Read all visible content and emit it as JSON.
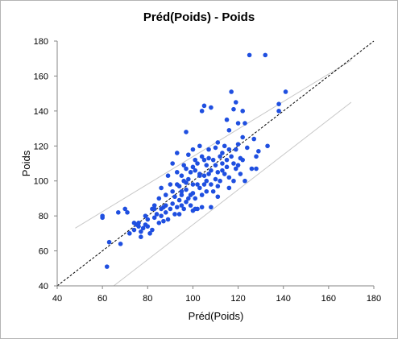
{
  "chart_data": {
    "type": "scatter",
    "title": "Préd(Poids) - Poids",
    "xlabel": "Préd(Poids)",
    "ylabel": "Poids",
    "xlim": [
      40,
      180
    ],
    "ylim": [
      40,
      180
    ],
    "xticks": [
      "40",
      "60",
      "80",
      "100",
      "120",
      "140",
      "160",
      "180"
    ],
    "yticks": [
      "40",
      "60",
      "80",
      "100",
      "120",
      "140",
      "160",
      "180"
    ],
    "grid": false,
    "legend": "none",
    "colors": {
      "points": "#1f4fe0",
      "identity_line": "#000000",
      "band_lines": "#c8c8c8",
      "axes": "#868686"
    },
    "identity_line": {
      "from": [
        40,
        40
      ],
      "to": [
        180,
        180
      ]
    },
    "band_lines": [
      {
        "from": [
          48,
          73
        ],
        "to": [
          170,
          169
        ]
      },
      {
        "from": [
          65,
          40
        ],
        "to": [
          170,
          145
        ]
      }
    ],
    "points": [
      [
        60,
        79
      ],
      [
        62,
        51
      ],
      [
        63,
        65
      ],
      [
        67,
        82
      ],
      [
        68,
        64
      ],
      [
        70,
        84
      ],
      [
        71,
        82
      ],
      [
        72,
        70
      ],
      [
        74,
        72
      ],
      [
        75,
        75
      ],
      [
        76,
        76
      ],
      [
        76,
        74
      ],
      [
        77,
        71
      ],
      [
        78,
        73
      ],
      [
        77,
        68
      ],
      [
        79,
        75
      ],
      [
        80,
        78
      ],
      [
        80,
        74
      ],
      [
        81,
        70
      ],
      [
        82,
        72
      ],
      [
        82,
        84
      ],
      [
        83,
        79
      ],
      [
        83,
        84
      ],
      [
        84,
        81
      ],
      [
        85,
        76
      ],
      [
        85,
        90
      ],
      [
        86,
        84
      ],
      [
        86,
        80
      ],
      [
        87,
        85
      ],
      [
        87,
        77
      ],
      [
        88,
        92
      ],
      [
        88,
        86
      ],
      [
        88,
        82
      ],
      [
        89,
        103
      ],
      [
        89,
        78
      ],
      [
        90,
        84
      ],
      [
        90,
        98
      ],
      [
        91,
        94
      ],
      [
        91,
        87
      ],
      [
        92,
        91
      ],
      [
        92,
        81
      ],
      [
        93,
        85
      ],
      [
        93,
        105
      ],
      [
        93,
        116
      ],
      [
        93,
        98
      ],
      [
        94,
        97
      ],
      [
        94,
        89
      ],
      [
        94,
        81
      ],
      [
        95,
        103
      ],
      [
        95,
        94
      ],
      [
        95,
        92
      ],
      [
        96,
        109
      ],
      [
        96,
        84
      ],
      [
        96,
        100
      ],
      [
        97,
        99
      ],
      [
        97,
        95
      ],
      [
        97,
        88
      ],
      [
        98,
        101
      ],
      [
        98,
        115
      ],
      [
        98,
        90
      ],
      [
        99,
        92
      ],
      [
        99,
        86
      ],
      [
        99,
        105
      ],
      [
        100,
        118
      ],
      [
        100,
        98
      ],
      [
        100,
        93
      ],
      [
        100,
        108
      ],
      [
        101,
        90
      ],
      [
        101,
        106
      ],
      [
        101,
        112
      ],
      [
        102,
        84
      ],
      [
        102,
        98
      ],
      [
        102,
        110
      ],
      [
        103,
        103
      ],
      [
        103,
        96
      ],
      [
        103,
        120
      ],
      [
        104,
        92
      ],
      [
        104,
        114
      ],
      [
        104,
        140
      ],
      [
        105,
        143
      ],
      [
        105,
        103
      ],
      [
        105,
        98
      ],
      [
        106,
        100
      ],
      [
        106,
        109
      ],
      [
        106,
        94
      ],
      [
        107,
        118
      ],
      [
        107,
        113
      ],
      [
        107,
        104
      ],
      [
        108,
        98
      ],
      [
        108,
        106
      ],
      [
        109,
        112
      ],
      [
        109,
        94
      ],
      [
        110,
        101
      ],
      [
        110,
        109
      ],
      [
        110,
        119
      ],
      [
        111,
        105
      ],
      [
        111,
        97
      ],
      [
        111,
        91
      ],
      [
        112,
        114
      ],
      [
        112,
        100
      ],
      [
        113,
        110
      ],
      [
        113,
        106
      ],
      [
        113,
        116
      ],
      [
        114,
        104
      ],
      [
        114,
        120
      ],
      [
        115,
        135
      ],
      [
        115,
        108
      ],
      [
        115,
        112
      ],
      [
        116,
        102
      ],
      [
        116,
        118
      ],
      [
        116,
        96
      ],
      [
        117,
        114
      ],
      [
        117,
        151
      ],
      [
        118,
        110
      ],
      [
        118,
        100
      ],
      [
        119,
        107
      ],
      [
        119,
        118
      ],
      [
        120,
        121
      ],
      [
        120,
        133
      ],
      [
        120,
        109
      ],
      [
        121,
        113
      ],
      [
        121,
        104
      ],
      [
        122,
        112
      ],
      [
        122,
        140
      ],
      [
        123,
        133
      ],
      [
        123,
        100
      ],
      [
        124,
        119
      ],
      [
        125,
        172
      ],
      [
        126,
        107
      ],
      [
        127,
        124
      ],
      [
        128,
        114
      ],
      [
        129,
        117
      ],
      [
        132,
        172
      ],
      [
        133,
        120
      ],
      [
        138,
        144
      ],
      [
        138,
        140
      ],
      [
        141,
        151
      ],
      [
        60,
        80
      ],
      [
        74,
        76
      ],
      [
        91,
        110
      ],
      [
        97,
        107
      ],
      [
        101,
        84
      ],
      [
        103,
        104
      ],
      [
        108,
        142
      ],
      [
        118,
        141
      ],
      [
        122,
        125
      ],
      [
        128,
        107
      ],
      [
        86,
        96
      ],
      [
        83,
        86
      ],
      [
        79,
        80
      ],
      [
        95,
        86
      ],
      [
        100,
        83
      ],
      [
        104,
        85
      ],
      [
        108,
        85
      ],
      [
        97,
        128
      ],
      [
        105,
        112
      ],
      [
        111,
        122
      ],
      [
        116,
        129
      ],
      [
        119,
        145
      ]
    ]
  }
}
